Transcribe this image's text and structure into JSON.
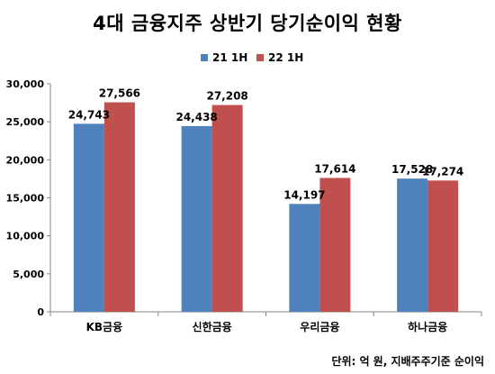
{
  "chart_data": {
    "type": "bar",
    "title": "4대 금융지주 상반기 당기순이익 현황",
    "categories": [
      "KB금융",
      "신한금융",
      "우리금융",
      "하나금융"
    ],
    "series": [
      {
        "name": "21 1H",
        "color": "#4F81BD",
        "values": [
          24743,
          24438,
          14197,
          17528
        ],
        "labels": [
          "24,743",
          "24,438",
          "14,197",
          "17,528"
        ]
      },
      {
        "name": "22 1H",
        "color": "#C0504D",
        "values": [
          27566,
          27208,
          17614,
          17274
        ],
        "labels": [
          "27,566",
          "27,208",
          "17,614",
          "17,274"
        ]
      }
    ],
    "ylim": [
      0,
      30000
    ],
    "yticks": [
      0,
      5000,
      10000,
      15000,
      20000,
      25000,
      30000
    ],
    "ytick_labels": [
      "0",
      "5,000",
      "10,000",
      "15,000",
      "20,000",
      "25,000",
      "30,000"
    ],
    "legend_position": "top",
    "grid": false,
    "source_note": "단위: 억 원, 지배주주기준 순이익"
  }
}
